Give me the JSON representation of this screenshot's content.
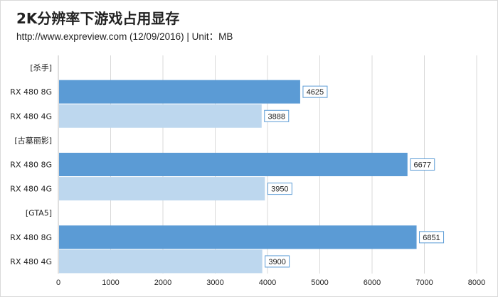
{
  "header": {
    "title": "2K分辨率下游戏占用显存",
    "subtitle": "http://www.expreview.com (12/09/2016) | Unit：MB"
  },
  "colors": {
    "series_8g": "#5b9bd5",
    "series_4g": "#bdd7ee",
    "grid": "#d9d9d9",
    "label_border": "#5b9bd5"
  },
  "chart_data": {
    "type": "bar",
    "orientation": "horizontal",
    "title": "2K分辨率下游戏占用显存",
    "subtitle": "http://www.expreview.com (12/09/2016) | Unit：MB",
    "xlim": [
      0,
      8000
    ],
    "x_ticks": [
      0,
      1000,
      2000,
      3000,
      4000,
      5000,
      6000,
      7000,
      8000
    ],
    "grid": "vertical gridlines on",
    "legend": "none",
    "rows": [
      {
        "label": "[杀手]",
        "value": null,
        "series": "group"
      },
      {
        "label": "RX 480 8G",
        "value": 4625,
        "series": "8G"
      },
      {
        "label": "RX 480 4G",
        "value": 3888,
        "series": "4G"
      },
      {
        "label": "[古墓丽影]",
        "value": null,
        "series": "group"
      },
      {
        "label": "RX 480 8G",
        "value": 6677,
        "series": "8G"
      },
      {
        "label": "RX 480 4G",
        "value": 3950,
        "series": "4G"
      },
      {
        "label": "[GTA5]",
        "value": null,
        "series": "group"
      },
      {
        "label": "RX 480 8G",
        "value": 6851,
        "series": "8G"
      },
      {
        "label": "RX 480 4G",
        "value": 3900,
        "series": "4G"
      }
    ]
  }
}
